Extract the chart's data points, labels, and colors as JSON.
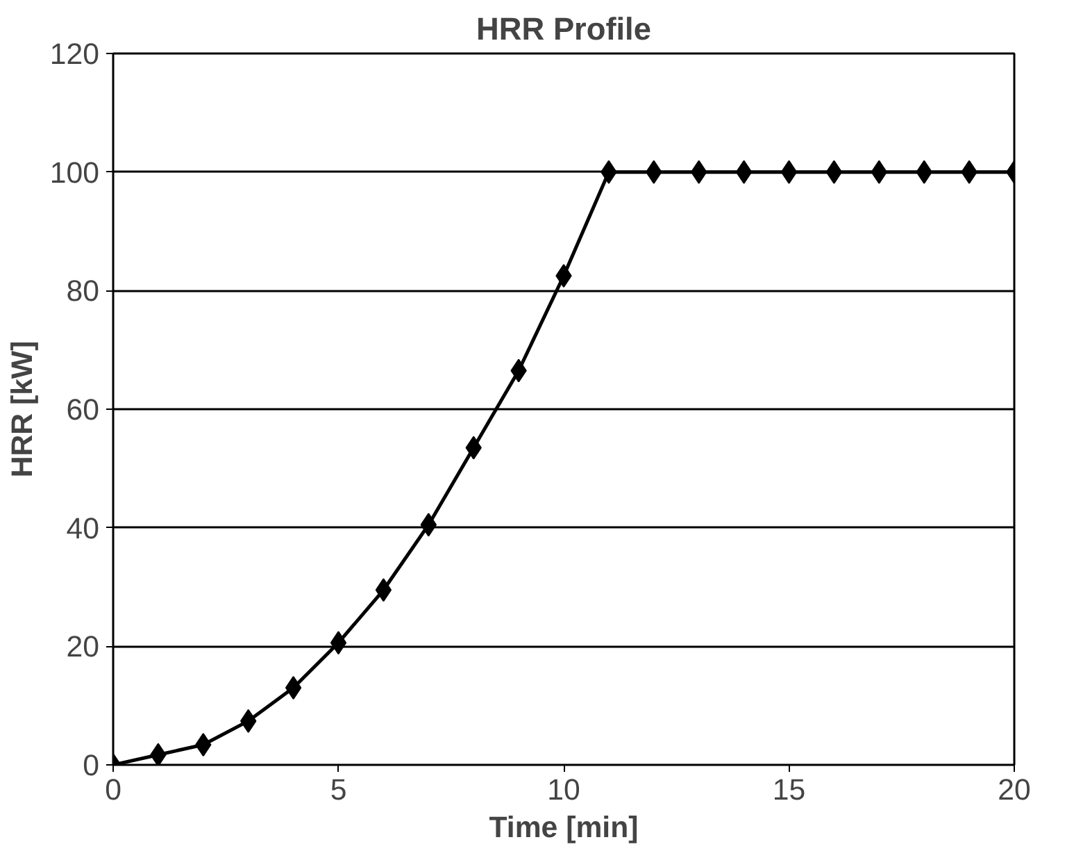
{
  "chart_data": {
    "type": "line",
    "title": "HRR Profile",
    "xlabel": "Time [min]",
    "ylabel": "HRR [kW]",
    "x": [
      0,
      1,
      2,
      3,
      4,
      5,
      6,
      7,
      8,
      9,
      10,
      11,
      12,
      13,
      14,
      15,
      16,
      17,
      18,
      19,
      20
    ],
    "series": [
      {
        "color": "#000000",
        "values": [
          0,
          1.7,
          3.4,
          7.4,
          13,
          20.6,
          29.5,
          40.5,
          53.5,
          66.5,
          82.5,
          100,
          100,
          100,
          100,
          100,
          100,
          100,
          100,
          100,
          100
        ]
      }
    ],
    "xlim": [
      0,
      20
    ],
    "ylim": [
      0,
      120
    ],
    "xticks": [
      0,
      5,
      10,
      15,
      20
    ],
    "yticks": [
      0,
      20,
      40,
      60,
      80,
      100,
      120
    ],
    "grid": "y",
    "marker": "diamond",
    "line_style": "solid"
  }
}
